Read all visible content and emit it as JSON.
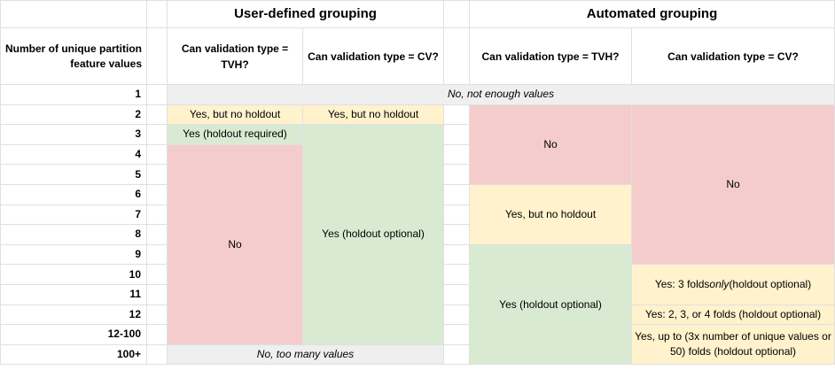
{
  "table": {
    "row_dimension_header": "Number of unique partition feature values",
    "groups": {
      "user_defined": "User-defined grouping",
      "automated": "Automated grouping"
    },
    "col_headers": {
      "user_tvh": "Can validation type = TVH?",
      "user_cv": "Can validation type = CV?",
      "auto_tvh": "Can validation type = TVH?",
      "auto_cv": "Can validation type = CV?"
    },
    "row_labels": [
      "1",
      "2",
      "3",
      "4",
      "5",
      "6",
      "7",
      "8",
      "9",
      "10",
      "11",
      "12",
      "12-100",
      "100+"
    ],
    "cells": {
      "not_enough_values": "No, not enough values",
      "too_many_values": "No, too many values",
      "user_tvh_row2": "Yes, but no holdout",
      "user_tvh_row3": "Yes (holdout required)",
      "user_tvh_no": "No",
      "user_cv_row2": "Yes, but no holdout",
      "user_cv_yes": "Yes (holdout optional)",
      "auto_tvh_no": "No",
      "auto_tvh_caution": "Yes, but no holdout",
      "auto_tvh_yes": "Yes (holdout optional)",
      "auto_cv_no": "No",
      "auto_cv_3folds": {
        "prefix": "Yes: 3 folds ",
        "italic": "only",
        "suffix": " (holdout optional)"
      },
      "auto_cv_234folds": "Yes: 2, 3, or 4 folds (holdout optional)",
      "auto_cv_upto": "Yes, up to (3x number of unique values or 50) folds (holdout optional)"
    },
    "colors": {
      "no": "#f4cccc",
      "caution": "#fff2cc",
      "yes": "#d9ead3",
      "na": "#efefef",
      "gridline": "#e0e0e0"
    }
  }
}
